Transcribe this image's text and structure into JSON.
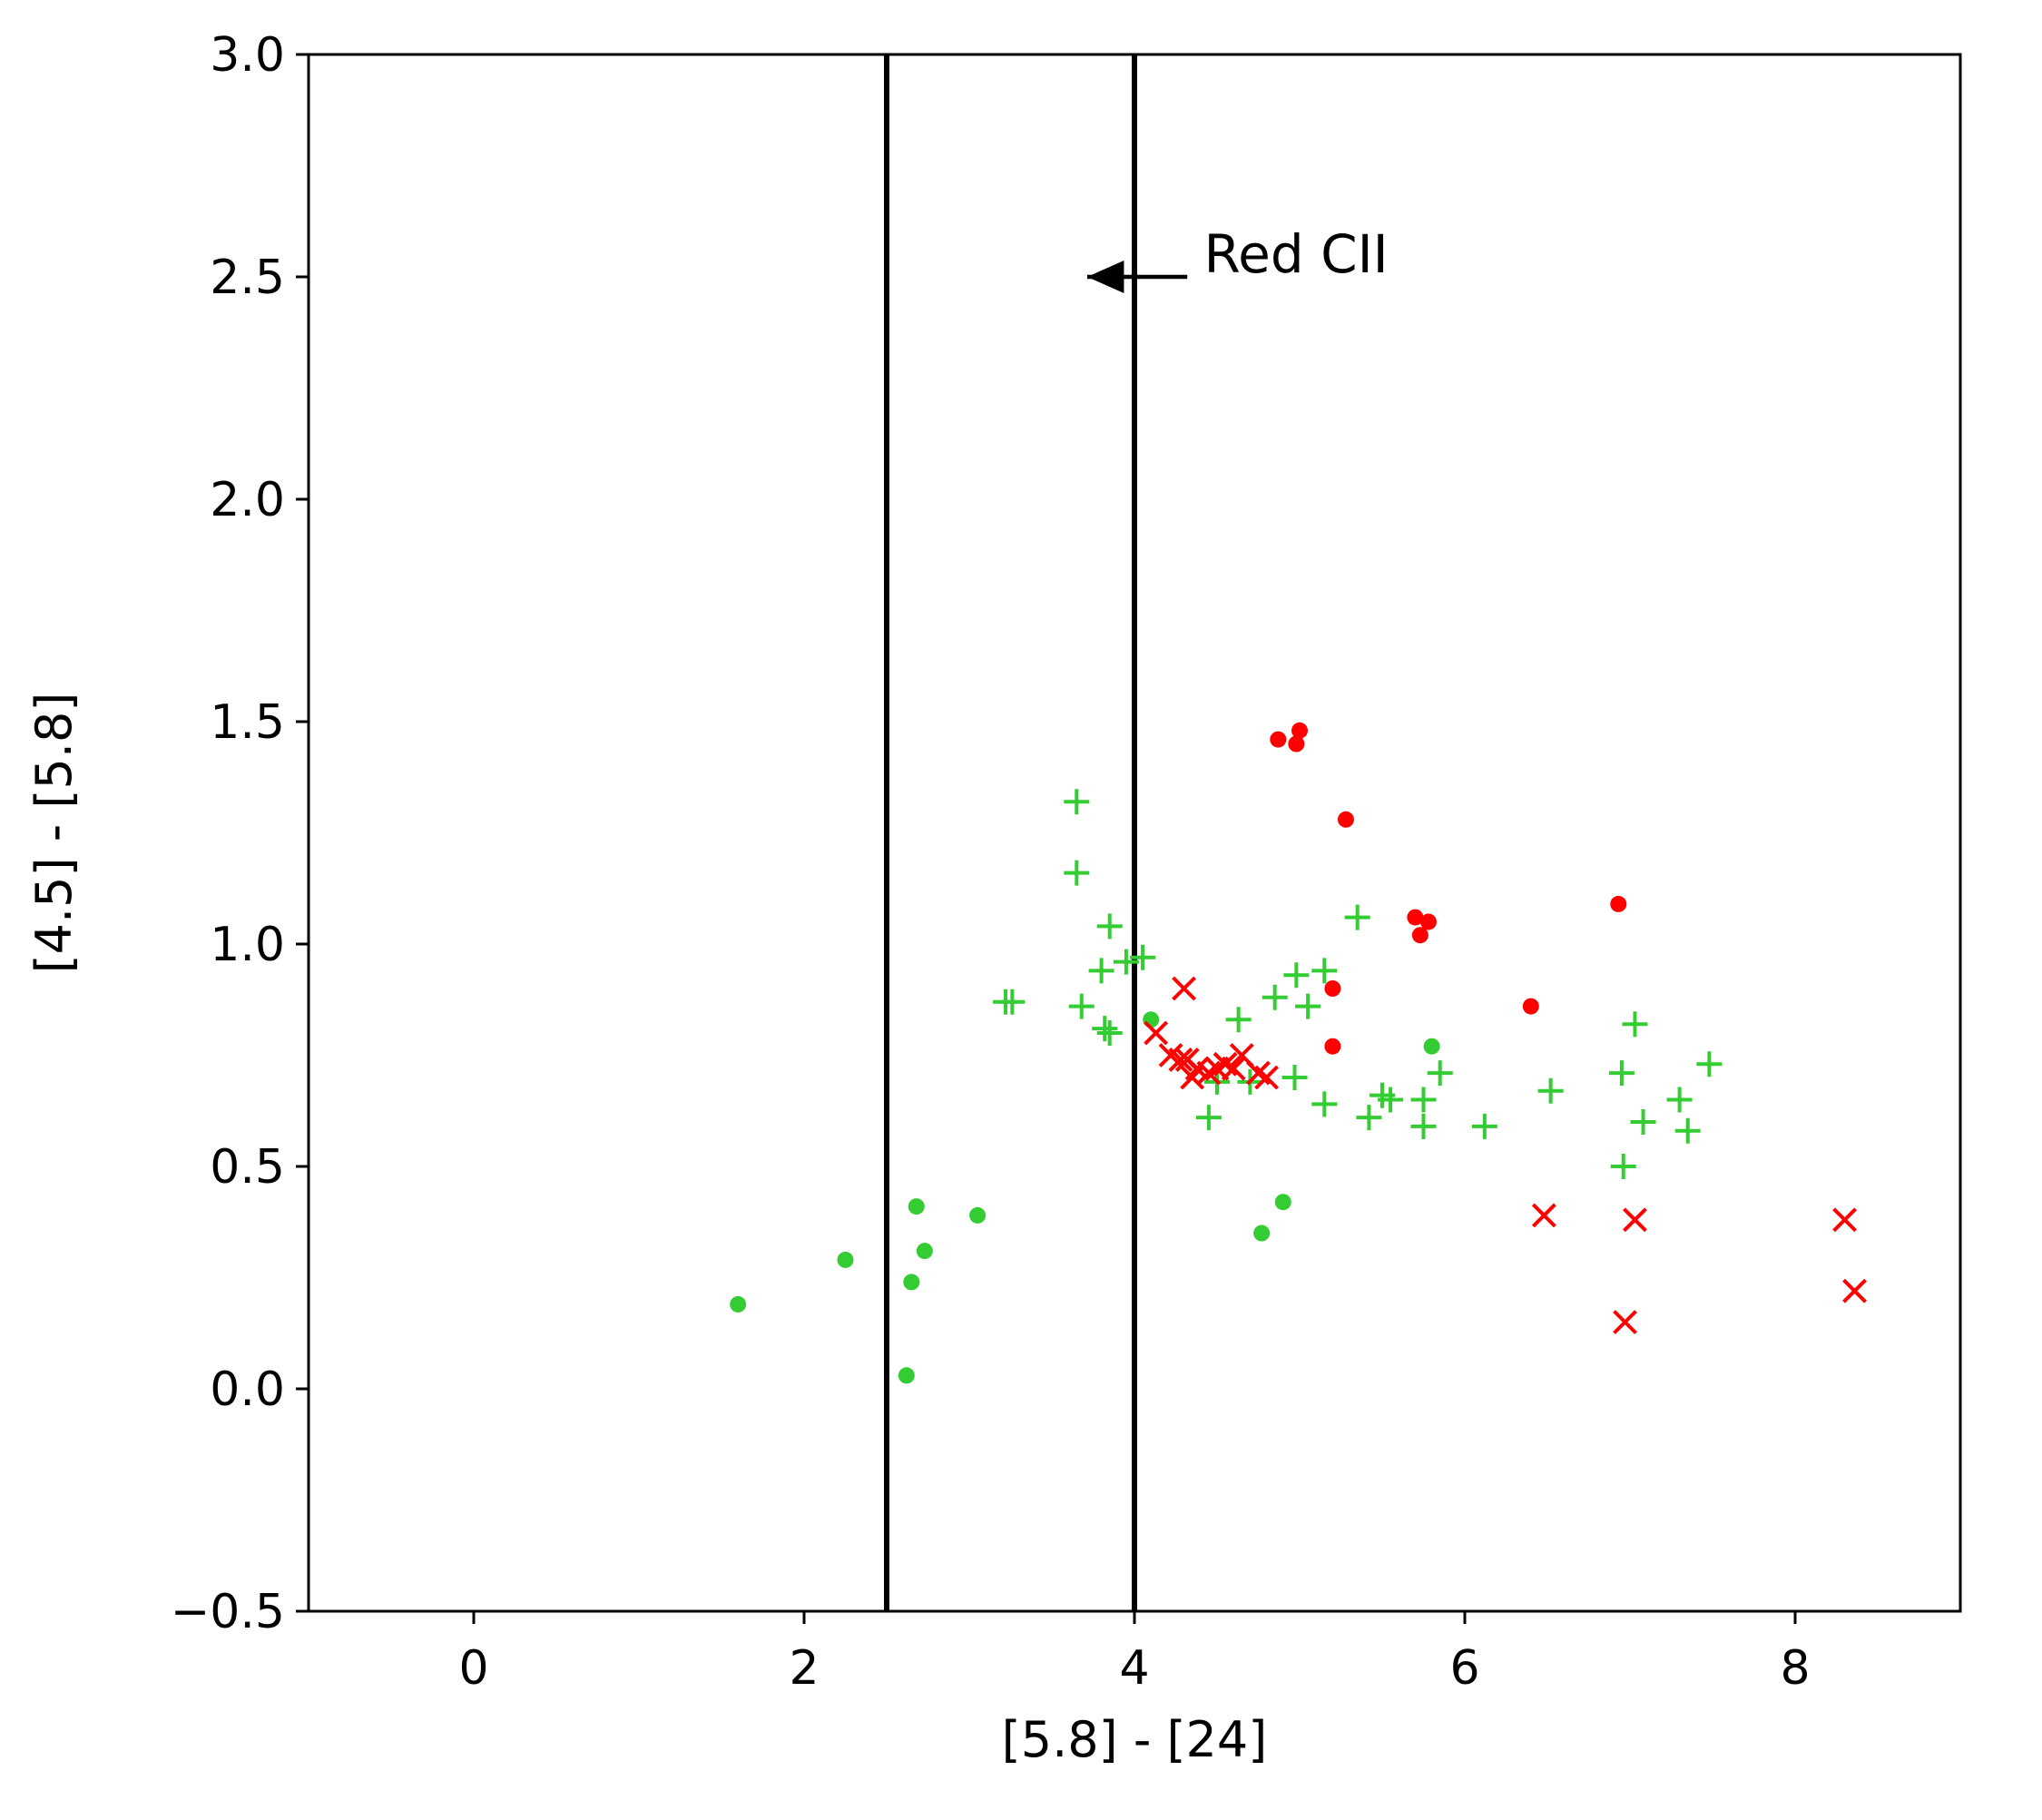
{
  "chart_data": {
    "type": "scatter",
    "title": "",
    "xlabel": "[5.8] - [24]",
    "ylabel": "[4.5] - [5.8]",
    "xlim": [
      -1,
      9
    ],
    "ylim": [
      -0.5,
      3.0
    ],
    "xticks": [
      0,
      2,
      4,
      6,
      8
    ],
    "xtick_labels": [
      "0",
      "2",
      "4",
      "6",
      "8"
    ],
    "yticks": [
      -0.5,
      0.0,
      0.5,
      1.0,
      1.5,
      2.0,
      2.5,
      3.0
    ],
    "ytick_labels": [
      "−0.5",
      "0.0",
      "0.5",
      "1.0",
      "1.5",
      "2.0",
      "2.5",
      "3.0"
    ],
    "grid": false,
    "vlines": [
      2.5,
      4.0
    ],
    "annotations": [
      {
        "text": "Red CII",
        "x": 4.42,
        "y": 2.5,
        "arrow_from": [
          4.32,
          2.5
        ],
        "arrow_to": [
          3.67,
          2.5
        ]
      }
    ],
    "colors": {
      "green": "#33cc33",
      "red": "#ff0000",
      "axes": "#000000"
    },
    "series": [
      {
        "marker": "dot",
        "color": "#33cc33",
        "points": [
          [
            1.6,
            0.19
          ],
          [
            2.25,
            0.29
          ],
          [
            2.62,
            0.03
          ],
          [
            2.65,
            0.24
          ],
          [
            2.68,
            0.41
          ],
          [
            2.73,
            0.31
          ],
          [
            3.05,
            0.39
          ],
          [
            4.1,
            0.83
          ],
          [
            4.77,
            0.35
          ],
          [
            4.9,
            0.42
          ],
          [
            5.8,
            0.77
          ]
        ]
      },
      {
        "marker": "plus",
        "color": "#33cc33",
        "points": [
          [
            3.65,
            1.32
          ],
          [
            3.65,
            1.16
          ],
          [
            3.85,
            1.04
          ],
          [
            3.8,
            0.94
          ],
          [
            3.95,
            0.96
          ],
          [
            4.05,
            0.97
          ],
          [
            3.22,
            0.87
          ],
          [
            3.26,
            0.87
          ],
          [
            3.68,
            0.86
          ],
          [
            3.82,
            0.81
          ],
          [
            3.85,
            0.8
          ],
          [
            4.63,
            0.83
          ],
          [
            4.85,
            0.88
          ],
          [
            4.98,
            0.93
          ],
          [
            5.05,
            0.86
          ],
          [
            5.15,
            0.94
          ],
          [
            5.35,
            1.06
          ],
          [
            4.97,
            0.7
          ],
          [
            5.15,
            0.64
          ],
          [
            4.45,
            0.61
          ],
          [
            4.5,
            0.69
          ],
          [
            4.7,
            0.69
          ],
          [
            5.42,
            0.61
          ],
          [
            5.5,
            0.66
          ],
          [
            5.55,
            0.65
          ],
          [
            5.75,
            0.65
          ],
          [
            5.75,
            0.59
          ],
          [
            5.85,
            0.71
          ],
          [
            6.12,
            0.59
          ],
          [
            6.52,
            0.67
          ],
          [
            6.95,
            0.71
          ],
          [
            6.96,
            0.5
          ],
          [
            7.03,
            0.82
          ],
          [
            7.08,
            0.6
          ],
          [
            7.3,
            0.65
          ],
          [
            7.35,
            0.58
          ],
          [
            7.48,
            0.73
          ]
        ]
      },
      {
        "marker": "dot",
        "color": "#ff0000",
        "points": [
          [
            4.87,
            1.46
          ],
          [
            5.0,
            1.48
          ],
          [
            4.98,
            1.45
          ],
          [
            5.28,
            1.28
          ],
          [
            5.7,
            1.06
          ],
          [
            5.78,
            1.05
          ],
          [
            5.73,
            1.02
          ],
          [
            5.2,
            0.9
          ],
          [
            5.2,
            0.77
          ],
          [
            6.4,
            0.86
          ],
          [
            6.93,
            1.09
          ]
        ]
      },
      {
        "marker": "x",
        "color": "#ff0000",
        "points": [
          [
            4.3,
            0.9
          ],
          [
            4.13,
            0.8
          ],
          [
            4.22,
            0.75
          ],
          [
            4.28,
            0.74
          ],
          [
            4.32,
            0.74
          ],
          [
            4.38,
            0.72
          ],
          [
            4.35,
            0.7
          ],
          [
            4.45,
            0.71
          ],
          [
            4.5,
            0.72
          ],
          [
            4.55,
            0.73
          ],
          [
            4.6,
            0.72
          ],
          [
            4.65,
            0.75
          ],
          [
            4.75,
            0.71
          ],
          [
            4.8,
            0.7
          ],
          [
            6.48,
            0.39
          ],
          [
            7.03,
            0.38
          ],
          [
            6.97,
            0.15
          ],
          [
            8.3,
            0.38
          ],
          [
            8.36,
            0.22
          ]
        ]
      }
    ]
  }
}
